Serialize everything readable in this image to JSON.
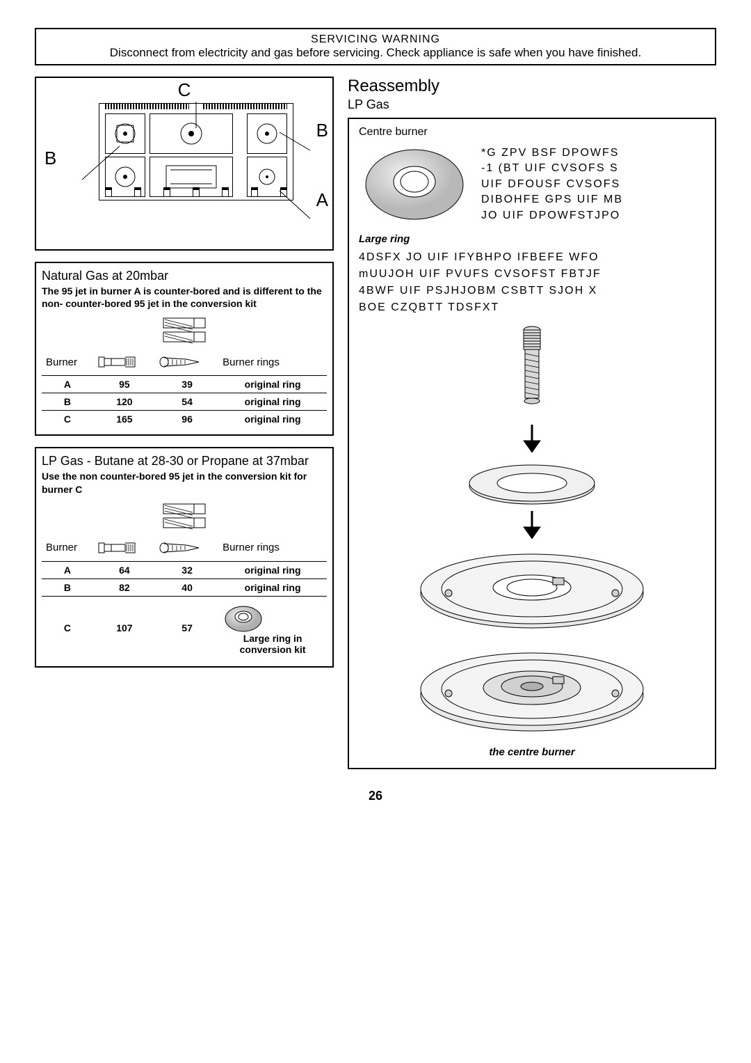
{
  "warning": {
    "title": "SERVICING   WARNING",
    "text": "Disconnect from electricity and gas before servicing. Check appliance is safe when you have finished."
  },
  "cooktop": {
    "labels": {
      "A": "A",
      "B": "B",
      "C": "C"
    }
  },
  "ng_section": {
    "title": "Natural Gas at 20mbar",
    "subtitle": "The 95 jet in burner A is counter-bored and is different to the non- counter-bored 95 jet in the conversion kit",
    "columns": [
      "Burner",
      "",
      "",
      "Burner rings"
    ],
    "rows": [
      [
        "A",
        "95",
        "39",
        "original ring"
      ],
      [
        "B",
        "120",
        "54",
        "original ring"
      ],
      [
        "C",
        "165",
        "96",
        "original ring"
      ]
    ]
  },
  "lp_section": {
    "title": "LP Gas - Butane at 28-30  or Propane at 37mbar",
    "subtitle": "Use the non counter-bored 95 jet in the conversion kit for burner C",
    "columns": [
      "Burner",
      "",
      "",
      "Burner rings"
    ],
    "rows": [
      [
        "A",
        "64",
        "32",
        "original ring"
      ],
      [
        "B",
        "82",
        "40",
        "original ring"
      ],
      [
        "C",
        "107",
        "57",
        ""
      ]
    ],
    "ring_caption": "Large ring in conversion kit"
  },
  "reassembly": {
    "title": "Reassembly",
    "subtitle": "LP Gas",
    "centre_burner_title": "Centre burner",
    "centre_burner_text": "*G  ZPV  BSF  DPOWFS\n-1  (BT  UIF  CVSOFS  S\nUIF  DFOUSF  CVSOFS\nDIBOHFE  GPS  UIF  MB\nJO  UIF  DPOWFSTJPO",
    "large_ring_title": "Large ring",
    "large_ring_text": "4DSFX  JO  UIF  IFYBHPO  IFBEFE  WFO\nmUUJOH  UIF  PVUFS  CVSOFST  FBTJF\n4BWF  UIF  PSJHJOBM  CSBTT  SJOH  X\nBOE  CZQBTT  TDSFXT",
    "caption": "the centre burner"
  },
  "page_number": "26",
  "colors": {
    "line": "#000000",
    "bg": "#ffffff",
    "ring_fill": "#c9c9c9"
  }
}
